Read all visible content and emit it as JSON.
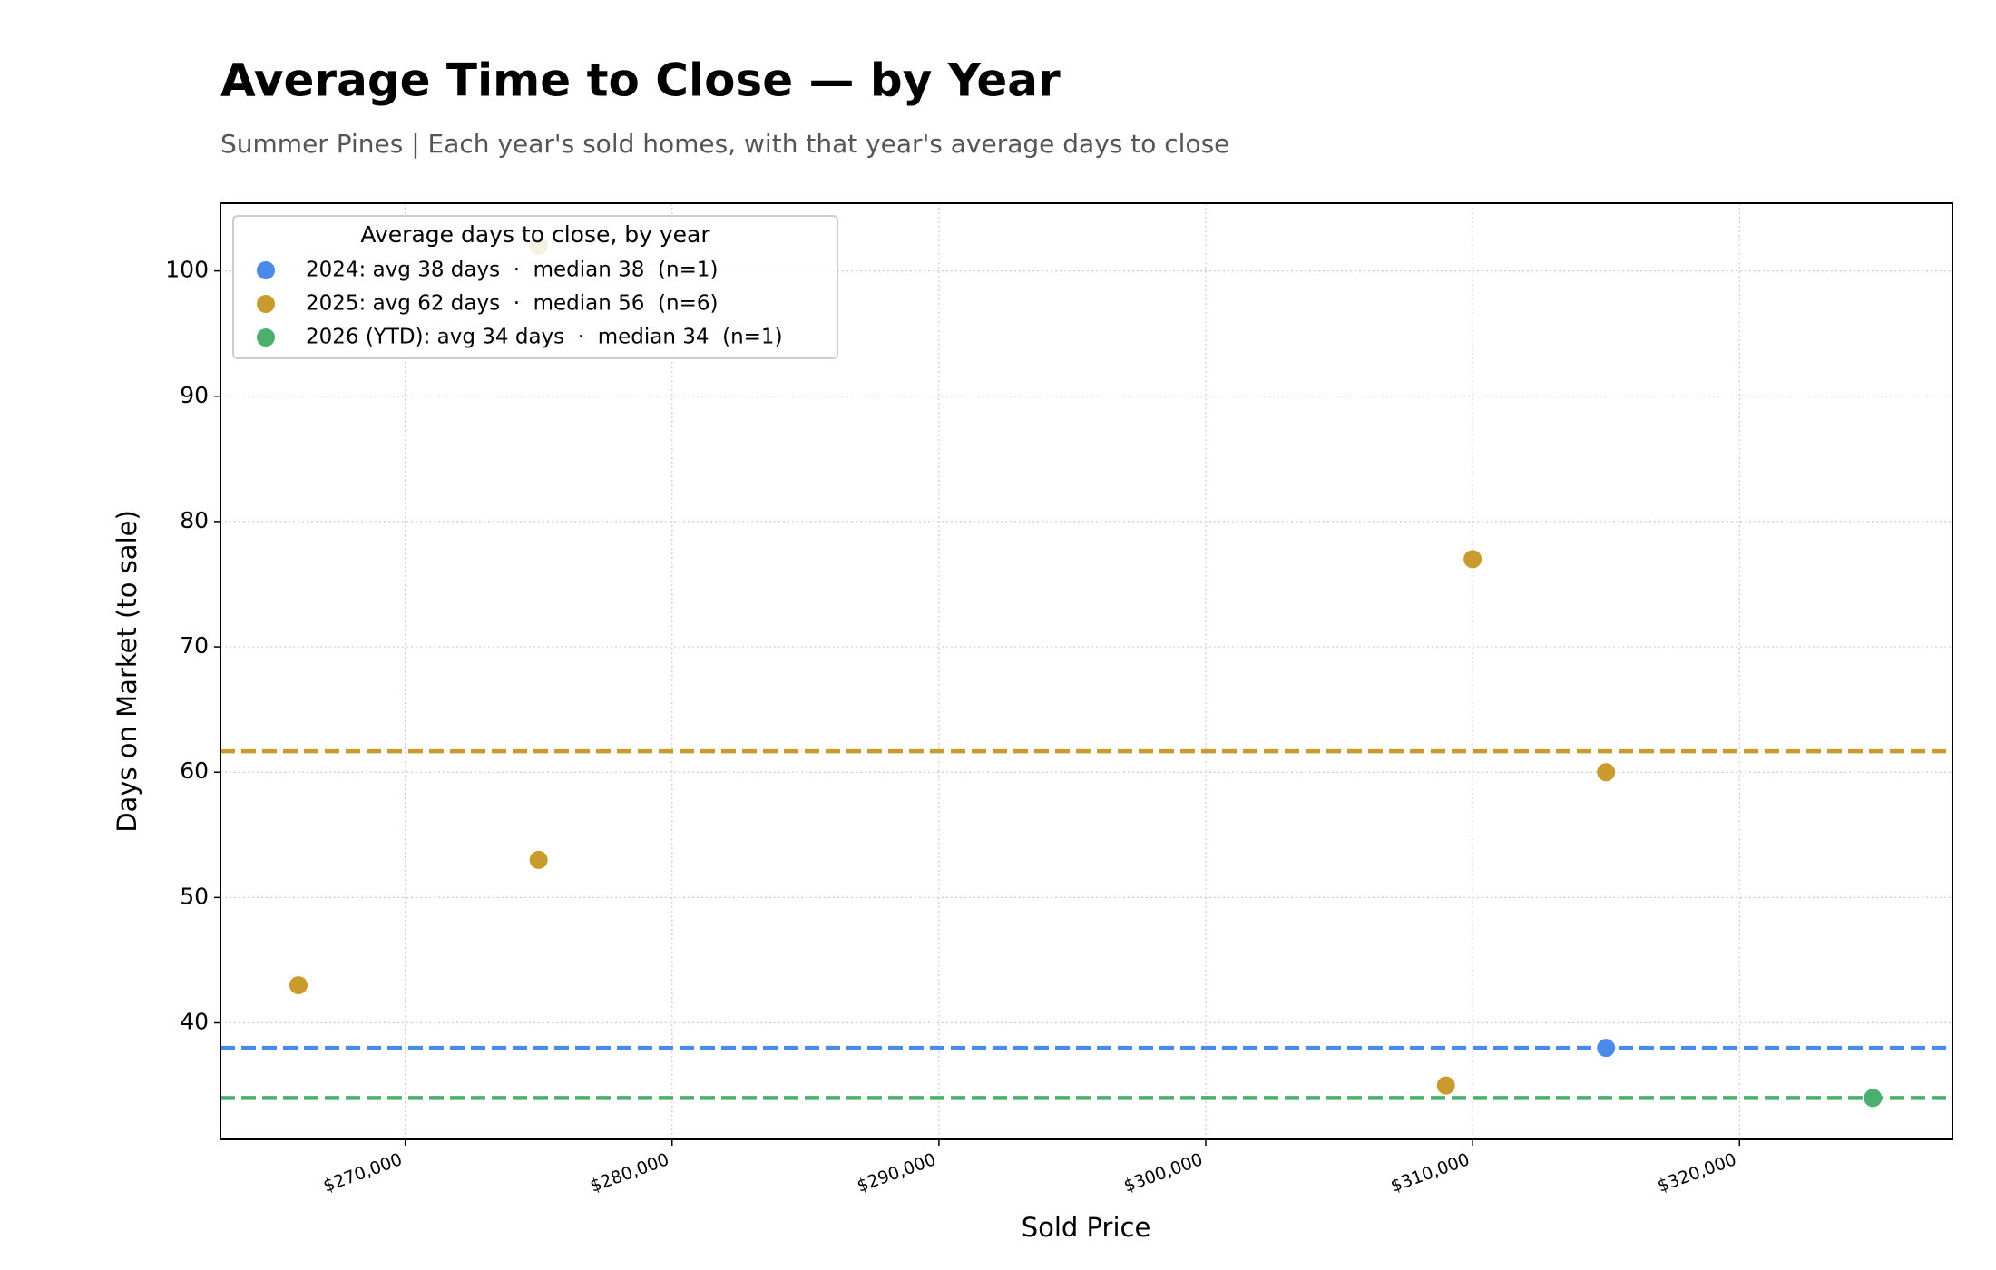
{
  "chart_data": {
    "type": "scatter",
    "title": "Average Time to Close — by Year",
    "subtitle": "Summer Pines  |  Each year's sold homes, with that year's average days to close",
    "x_label": "Sold Price",
    "y_label": "Days on Market (to sale)",
    "legend_title": "Average days to close, by year",
    "legend_position": "upper left",
    "grid": true,
    "xlim": [
      263077,
      327981
    ],
    "ylim": [
      30.7,
      105.4
    ],
    "xticks": [
      {
        "value": 270000,
        "label": "$270,000"
      },
      {
        "value": 280000,
        "label": "$280,000"
      },
      {
        "value": 290000,
        "label": "$290,000"
      },
      {
        "value": 300000,
        "label": "$300,000"
      },
      {
        "value": 310000,
        "label": "$310,000"
      },
      {
        "value": 320000,
        "label": "$320,000"
      }
    ],
    "yticks": [
      40,
      50,
      60,
      70,
      80,
      90,
      100
    ],
    "series": [
      {
        "name": "2024: avg 38 days  ·  median 38  (n=1)",
        "color": "#4a8ae8",
        "mean": 38,
        "x": [
          315000
        ],
        "y": [
          38
        ]
      },
      {
        "name": "2025: avg 62 days  ·  median 56  (n=6)",
        "color": "#c99a2e",
        "mean": 61.67,
        "x": [
          266000,
          275000,
          275000,
          310000,
          315000,
          309000
        ],
        "y": [
          43,
          53,
          102,
          77,
          60,
          35
        ]
      },
      {
        "name": "2026 (YTD): avg 34 days  ·  median 34  (n=1)",
        "color": "#4caf6e",
        "mean": 34,
        "x": [
          325000
        ],
        "y": [
          34
        ]
      }
    ]
  }
}
